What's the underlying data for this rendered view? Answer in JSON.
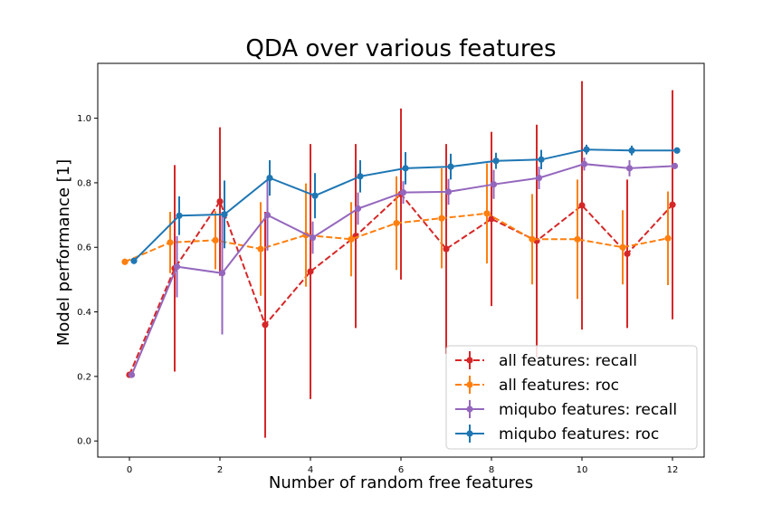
{
  "chart_data": {
    "type": "line",
    "title": "QDA over various features",
    "xlabel": "Number of random free features",
    "ylabel": "Model performance [1]",
    "xlim": [
      -0.7,
      12.7
    ],
    "ylim": [
      -0.05,
      1.17
    ],
    "xticks": [
      0,
      2,
      4,
      6,
      8,
      10,
      12
    ],
    "yticks": [
      0.0,
      0.2,
      0.4,
      0.6,
      0.8,
      1.0
    ],
    "xtick_labels": [
      "0",
      "2",
      "4",
      "6",
      "8",
      "10",
      "12"
    ],
    "ytick_labels": [
      "0.0",
      "0.2",
      "0.4",
      "0.6",
      "0.8",
      "1.0"
    ],
    "grid": false,
    "legend_position": "lower-right",
    "series": [
      {
        "name": "all features: recall",
        "color": "#d62728",
        "dash": "dashed",
        "x": [
          0,
          1,
          2,
          3,
          4,
          5,
          6,
          7,
          8,
          9,
          10,
          11,
          12
        ],
        "y": [
          0.205,
          0.535,
          0.742,
          0.36,
          0.525,
          0.635,
          0.765,
          0.595,
          0.688,
          0.62,
          0.73,
          0.58,
          0.732
        ],
        "err": [
          0.0,
          0.32,
          0.23,
          0.35,
          0.395,
          0.285,
          0.265,
          0.325,
          0.27,
          0.36,
          0.385,
          0.23,
          0.355
        ]
      },
      {
        "name": "all features: roc",
        "color": "#ff7f0e",
        "dash": "dashed",
        "x": [
          -0.1,
          0.9,
          1.9,
          2.9,
          3.9,
          4.9,
          5.9,
          6.9,
          7.9,
          8.9,
          9.9,
          10.9,
          11.9
        ],
        "y": [
          0.555,
          0.615,
          0.622,
          0.595,
          0.638,
          0.625,
          0.675,
          0.69,
          0.705,
          0.625,
          0.625,
          0.6,
          0.628
        ],
        "err": [
          0.0,
          0.095,
          0.09,
          0.145,
          0.16,
          0.115,
          0.145,
          0.155,
          0.155,
          0.14,
          0.185,
          0.115,
          0.145
        ]
      },
      {
        "name": "miqubo features: recall",
        "color": "#9467bd",
        "dash": "solid",
        "x": [
          0.05,
          1.05,
          2.05,
          3.05,
          4.05,
          5.05,
          6.05,
          7.05,
          8.05,
          9.05,
          10.05,
          11.05,
          12.05
        ],
        "y": [
          0.205,
          0.54,
          0.52,
          0.7,
          0.63,
          0.72,
          0.77,
          0.772,
          0.795,
          0.815,
          0.858,
          0.845,
          0.852
        ],
        "err": [
          0.0,
          0.095,
          0.19,
          0.11,
          0.05,
          0.05,
          0.035,
          0.04,
          0.045,
          0.035,
          0.02,
          0.025,
          0.0
        ]
      },
      {
        "name": "miqubo features: roc",
        "color": "#1f77b4",
        "dash": "solid",
        "x": [
          0.1,
          1.1,
          2.1,
          3.1,
          4.1,
          5.1,
          6.1,
          7.1,
          8.1,
          9.1,
          10.1,
          11.1,
          12.1
        ],
        "y": [
          0.558,
          0.698,
          0.702,
          0.815,
          0.76,
          0.82,
          0.845,
          0.85,
          0.868,
          0.872,
          0.903,
          0.9,
          0.9
        ],
        "err": [
          0.0,
          0.06,
          0.105,
          0.055,
          0.07,
          0.05,
          0.05,
          0.04,
          0.025,
          0.03,
          0.015,
          0.015,
          0.0
        ]
      }
    ]
  }
}
